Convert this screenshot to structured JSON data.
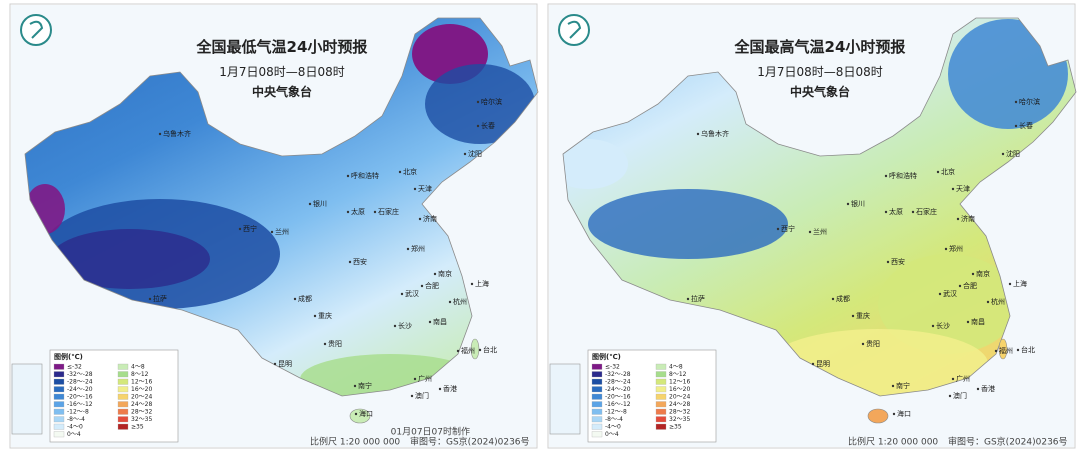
{
  "legend_title": "图例(℃)",
  "legend": [
    {
      "label": "≤-32",
      "color": "#7e1a86"
    },
    {
      "label": "-32～-28",
      "color": "#2c2a8c"
    },
    {
      "label": "-28～-24",
      "color": "#1d4ea3"
    },
    {
      "label": "-24～-20",
      "color": "#2a6cbf"
    },
    {
      "label": "-20～-16",
      "color": "#3f88d5"
    },
    {
      "label": "-16～-12",
      "color": "#5ba3e6"
    },
    {
      "label": "-12～-8",
      "color": "#7fbef0"
    },
    {
      "label": "-8～-4",
      "color": "#a9d6f6"
    },
    {
      "label": "-4～0",
      "color": "#d4ecfb"
    },
    {
      "label": "0～4",
      "color": "#f4faf2"
    },
    {
      "label": "4～8",
      "color": "#c9ecb6"
    },
    {
      "label": "8～12",
      "color": "#a6dd8b"
    },
    {
      "label": "12～16",
      "color": "#d4e87b"
    },
    {
      "label": "16～20",
      "color": "#f1ee8b"
    },
    {
      "label": "20～24",
      "color": "#f6d36c"
    },
    {
      "label": "24～28",
      "color": "#f3a75b"
    },
    {
      "label": "28～32",
      "color": "#ee7b4b"
    },
    {
      "label": "32～35",
      "color": "#e44b3b"
    },
    {
      "label": "≥35",
      "color": "#b32424"
    }
  ],
  "cities": [
    "乌鲁木齐",
    "哈尔滨",
    "长春",
    "沈阳",
    "呼和浩特",
    "北京",
    "天津",
    "石家庄",
    "太原",
    "济南",
    "银川",
    "兰州",
    "西宁",
    "郑州",
    "西安",
    "合肥",
    "南京",
    "上海",
    "武汉",
    "杭州",
    "成都",
    "重庆",
    "长沙",
    "南昌",
    "贵阳",
    "福州",
    "台北",
    "昆明",
    "南宁",
    "广州",
    "香港",
    "澳门",
    "海口",
    "拉萨"
  ],
  "scale": "比例尺 1:20 000 000",
  "map_number": "审图号：GS京(2024)0236号",
  "maps": [
    {
      "title": "全国最低气温24小时预报",
      "period": "1月7日08时—8日08时",
      "agency": "中央气象台",
      "made": "01月07日07时制作"
    },
    {
      "title": "全国最高气温24小时预报",
      "period": "1月7日08时—8日08时",
      "agency": "中央气象台"
    }
  ]
}
